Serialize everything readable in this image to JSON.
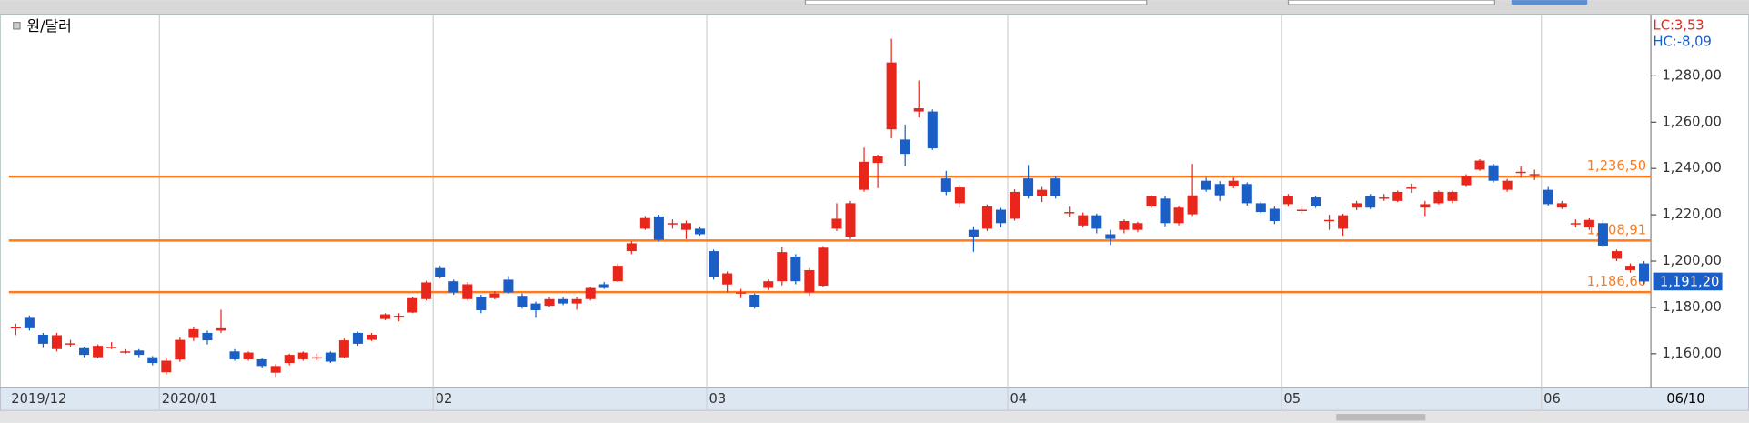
{
  "chart_data": {
    "type": "candlestick",
    "series_name": "원/달러",
    "categories": [
      "2019/12",
      null,
      null,
      null,
      null,
      null,
      null,
      null,
      null,
      null,
      null,
      "2020/01",
      null,
      null,
      null,
      null,
      null,
      null,
      null,
      null,
      null,
      null,
      null,
      null,
      null,
      null,
      null,
      null,
      null,
      null,
      null,
      "02",
      null,
      null,
      null,
      null,
      null,
      null,
      null,
      null,
      null,
      null,
      null,
      null,
      null,
      null,
      null,
      null,
      null,
      null,
      null,
      "03",
      null,
      null,
      null,
      null,
      null,
      null,
      null,
      null,
      null,
      null,
      null,
      null,
      null,
      null,
      null,
      null,
      null,
      null,
      null,
      null,
      null,
      "04",
      null,
      null,
      null,
      null,
      null,
      null,
      null,
      null,
      null,
      null,
      null,
      null,
      null,
      null,
      null,
      null,
      null,
      null,
      null,
      "05",
      null,
      null,
      null,
      null,
      null,
      null,
      null,
      null,
      null,
      null,
      null,
      null,
      null,
      null,
      null,
      null,
      null,
      null,
      "06",
      null,
      null,
      null,
      null,
      null,
      null,
      null
    ],
    "x_end_label": "06/10",
    "open": [
      1171.5,
      1175.5,
      1168.2,
      1162,
      1164.5,
      1162.4,
      1158.5,
      1163,
      1161,
      1161.4,
      1158.5,
      1152,
      1157.5,
      1166.8,
      1169,
      1170,
      1161,
      1157.6,
      1157.6,
      1151.8,
      1156,
      1157.6,
      1158.5,
      1160.5,
      1158.5,
      1169,
      1166,
      1175,
      1176.4,
      1177.8,
      1183.6,
      1197,
      1191.3,
      1183.6,
      1184.6,
      1184,
      1192,
      1185,
      1181.7,
      1180.7,
      1183.6,
      1181.7,
      1183.6,
      1190,
      1191.3,
      1204.3,
      1214,
      1219.3,
      1216.4,
      1213.5,
      1214,
      1204.3,
      1189.9,
      1186.5,
      1185.5,
      1188.4,
      1191.3,
      1202,
      1186.5,
      1189.4,
      1214,
      1210.6,
      1230.8,
      1242.4,
      1256.9,
      1252.5,
      1264.6,
      1264.6,
      1235.7,
      1225,
      1213.5,
      1214,
      1222.2,
      1218.3,
      1235.7,
      1228,
      1235.7,
      1221.2,
      1215.4,
      1219.8,
      1211.6,
      1213.5,
      1213.5,
      1223.6,
      1227,
      1216.4,
      1220.2,
      1234.7,
      1233.3,
      1232.3,
      1233.3,
      1225,
      1222.6,
      1224.6,
      1222.2,
      1227.5,
      1217.8,
      1214,
      1223.1,
      1228,
      1227.5,
      1226,
      1231.8,
      1223.1,
      1225,
      1226,
      1232.8,
      1239.5,
      1241.4,
      1230.8,
      1238.6,
      1237.6,
      1230.8,
      1223.1,
      1216.4,
      1214.5,
      1216.4,
      1201,
      1196.1,
      1199
    ],
    "high": [
      1173,
      1176.5,
      1169,
      1169,
      1166,
      1163,
      1164,
      1165,
      1162,
      1162,
      1159,
      1158,
      1167,
      1171.5,
      1170,
      1179,
      1162,
      1161,
      1158,
      1155.5,
      1160,
      1161,
      1160,
      1161,
      1166.5,
      1169.5,
      1169,
      1177.5,
      1177.5,
      1184.5,
      1191.5,
      1198,
      1192,
      1191,
      1185.5,
      1187,
      1193.5,
      1186,
      1182.5,
      1184.5,
      1184.5,
      1184.5,
      1189,
      1191,
      1199,
      1208.5,
      1219.5,
      1220,
      1218,
      1217.5,
      1215,
      1205,
      1195.5,
      1188,
      1186,
      1192,
      1206,
      1203,
      1197,
      1206.5,
      1225,
      1226,
      1249,
      1246,
      1296,
      1259,
      1278,
      1265.5,
      1239,
      1233,
      1215,
      1224.5,
      1223,
      1231,
      1241.5,
      1232,
      1236.5,
      1223.5,
      1221,
      1220.5,
      1213.5,
      1218,
      1217,
      1228.5,
      1228,
      1224,
      1242,
      1236,
      1234.5,
      1236,
      1234,
      1226,
      1223.5,
      1229,
      1224,
      1228,
      1220,
      1220.5,
      1226,
      1229,
      1229,
      1230.5,
      1233.5,
      1226,
      1230.5,
      1230.5,
      1237.5,
      1244,
      1242,
      1235.5,
      1241,
      1239.5,
      1232,
      1226,
      1218,
      1218.5,
      1217.5,
      1205,
      1199,
      1200
    ],
    "low": [
      1168,
      1170,
      1162.5,
      1161,
      1163,
      1158.5,
      1158,
      1162,
      1160,
      1158.5,
      1155,
      1151,
      1156.5,
      1165.5,
      1164,
      1169,
      1157,
      1157,
      1154,
      1150,
      1155,
      1157,
      1157,
      1156,
      1158,
      1163.5,
      1165.5,
      1174.5,
      1174,
      1177.5,
      1183,
      1192.5,
      1185.5,
      1183,
      1177.5,
      1183.5,
      1186,
      1179.5,
      1175.5,
      1180,
      1181,
      1179,
      1183,
      1188,
      1191,
      1203,
      1213.5,
      1208.5,
      1214,
      1209.5,
      1211,
      1192,
      1186.5,
      1184,
      1179.5,
      1187.5,
      1189.5,
      1190,
      1185,
      1189,
      1213,
      1209.5,
      1230,
      1231.5,
      1253,
      1241,
      1262,
      1248,
      1228.5,
      1223,
      1204,
      1213,
      1214.5,
      1217.5,
      1227,
      1225.5,
      1227,
      1219,
      1214.5,
      1212,
      1207,
      1212,
      1212.5,
      1223,
      1215,
      1215.5,
      1219.5,
      1230,
      1226,
      1231.5,
      1224,
      1220.5,
      1216,
      1223.5,
      1220.5,
      1223,
      1213.5,
      1211,
      1222,
      1222.5,
      1226,
      1225.5,
      1229.5,
      1219.5,
      1224.5,
      1225,
      1232,
      1239,
      1234,
      1230,
      1236,
      1235,
      1224,
      1222.5,
      1214.5,
      1213.5,
      1206,
      1200,
      1195,
      1190
    ],
    "close": [
      1171.5,
      1171,
      1164.3,
      1168,
      1164.5,
      1159.5,
      1163.4,
      1163,
      1161,
      1159.5,
      1156,
      1157,
      1166,
      1170.6,
      1165.8,
      1171,
      1157.6,
      1160.5,
      1154.7,
      1154.7,
      1159.5,
      1160.5,
      1158.5,
      1156.6,
      1165.8,
      1164.3,
      1168.2,
      1177,
      1176.4,
      1184,
      1190.8,
      1193.3,
      1186.5,
      1190,
      1178.8,
      1186,
      1186.5,
      1180.2,
      1178.8,
      1183.6,
      1181.7,
      1183.6,
      1188.4,
      1188.4,
      1198,
      1207.7,
      1218.6,
      1209.2,
      1216.4,
      1216.4,
      1211.6,
      1193.3,
      1194.7,
      1186.5,
      1180.2,
      1191.3,
      1203.9,
      1191.3,
      1196.1,
      1205.8,
      1218.3,
      1225,
      1242.9,
      1245.3,
      1285.8,
      1246.3,
      1266,
      1248.7,
      1229.9,
      1231.8,
      1210.6,
      1223.6,
      1216.4,
      1229.9,
      1228,
      1230.8,
      1228,
      1221.2,
      1219.8,
      1214,
      1209.6,
      1217.3,
      1216.4,
      1228,
      1216.4,
      1223.1,
      1228.4,
      1230.8,
      1228.4,
      1234.7,
      1225,
      1221.2,
      1217.3,
      1228,
      1222.2,
      1223.6,
      1217.8,
      1219.8,
      1225,
      1223.1,
      1227.5,
      1229.9,
      1231.8,
      1224.6,
      1229.9,
      1229.9,
      1236.6,
      1243.4,
      1234.7,
      1234.7,
      1238.6,
      1237.6,
      1224.6,
      1225,
      1216.4,
      1217.8,
      1206.7,
      1204.3,
      1198,
      1191.2
    ],
    "up_color": "#e8261c",
    "down_color": "#1a5ec6",
    "ylim": [
      1146.5,
      1305.5
    ],
    "yticks": [
      {
        "value": 1160,
        "label": "1,160,00"
      },
      {
        "value": 1180,
        "label": "1,180,00"
      },
      {
        "value": 1200,
        "label": "1,200,00"
      },
      {
        "value": 1220,
        "label": "1,220,00"
      },
      {
        "value": 1240,
        "label": "1,240,00"
      },
      {
        "value": 1260,
        "label": "1,260,00"
      },
      {
        "value": 1280,
        "label": "1,280,00"
      }
    ],
    "hlines": [
      {
        "value": 1236.5,
        "label": "1,236,50"
      },
      {
        "value": 1208.91,
        "label": "1,208,91"
      },
      {
        "value": 1186.6,
        "label": "1,186,60"
      }
    ],
    "hline_color": "#ff7a1c",
    "current_price": {
      "value": 1191.2,
      "label": "1,191,20"
    },
    "annotations": [
      {
        "text": "LC:3,53",
        "color": "#e8261c"
      },
      {
        "text": "HC:-8,09",
        "color": "#1a5ec6"
      }
    ],
    "grid": "x"
  }
}
